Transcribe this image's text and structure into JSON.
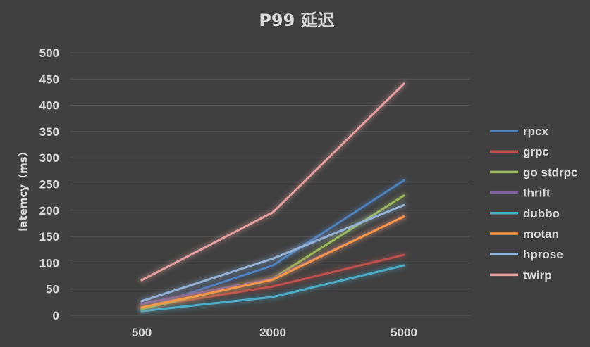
{
  "chart_data": {
    "type": "line",
    "title": "P99 延迟",
    "xlabel": "",
    "ylabel": "latemcy（ms）",
    "categories": [
      "500",
      "2000",
      "5000"
    ],
    "ylim": [
      0,
      500
    ],
    "yticks": [
      "0",
      "50",
      "100",
      "150",
      "200",
      "250",
      "300",
      "350",
      "400",
      "450",
      "500"
    ],
    "grid": true,
    "legend_position": "right",
    "series": [
      {
        "name": "rpcx",
        "color": "#4f81bd",
        "values": [
          12,
          95,
          257
        ]
      },
      {
        "name": "grpc",
        "color": "#c0504d",
        "values": [
          15,
          55,
          115
        ]
      },
      {
        "name": "go stdrpc",
        "color": "#9bbb59",
        "values": [
          12,
          70,
          228
        ]
      },
      {
        "name": "thrift",
        "color": "#8064a2",
        "values": [
          22,
          70,
          188
        ]
      },
      {
        "name": "dubbo",
        "color": "#4bacc6",
        "values": [
          8,
          35,
          95
        ]
      },
      {
        "name": "motan",
        "color": "#f79646",
        "values": [
          15,
          68,
          188
        ]
      },
      {
        "name": "hprose",
        "color": "#95b3d7",
        "values": [
          27,
          108,
          210
        ]
      },
      {
        "name": "twirp",
        "color": "#e6a0a0",
        "values": [
          67,
          196,
          441
        ]
      }
    ]
  }
}
